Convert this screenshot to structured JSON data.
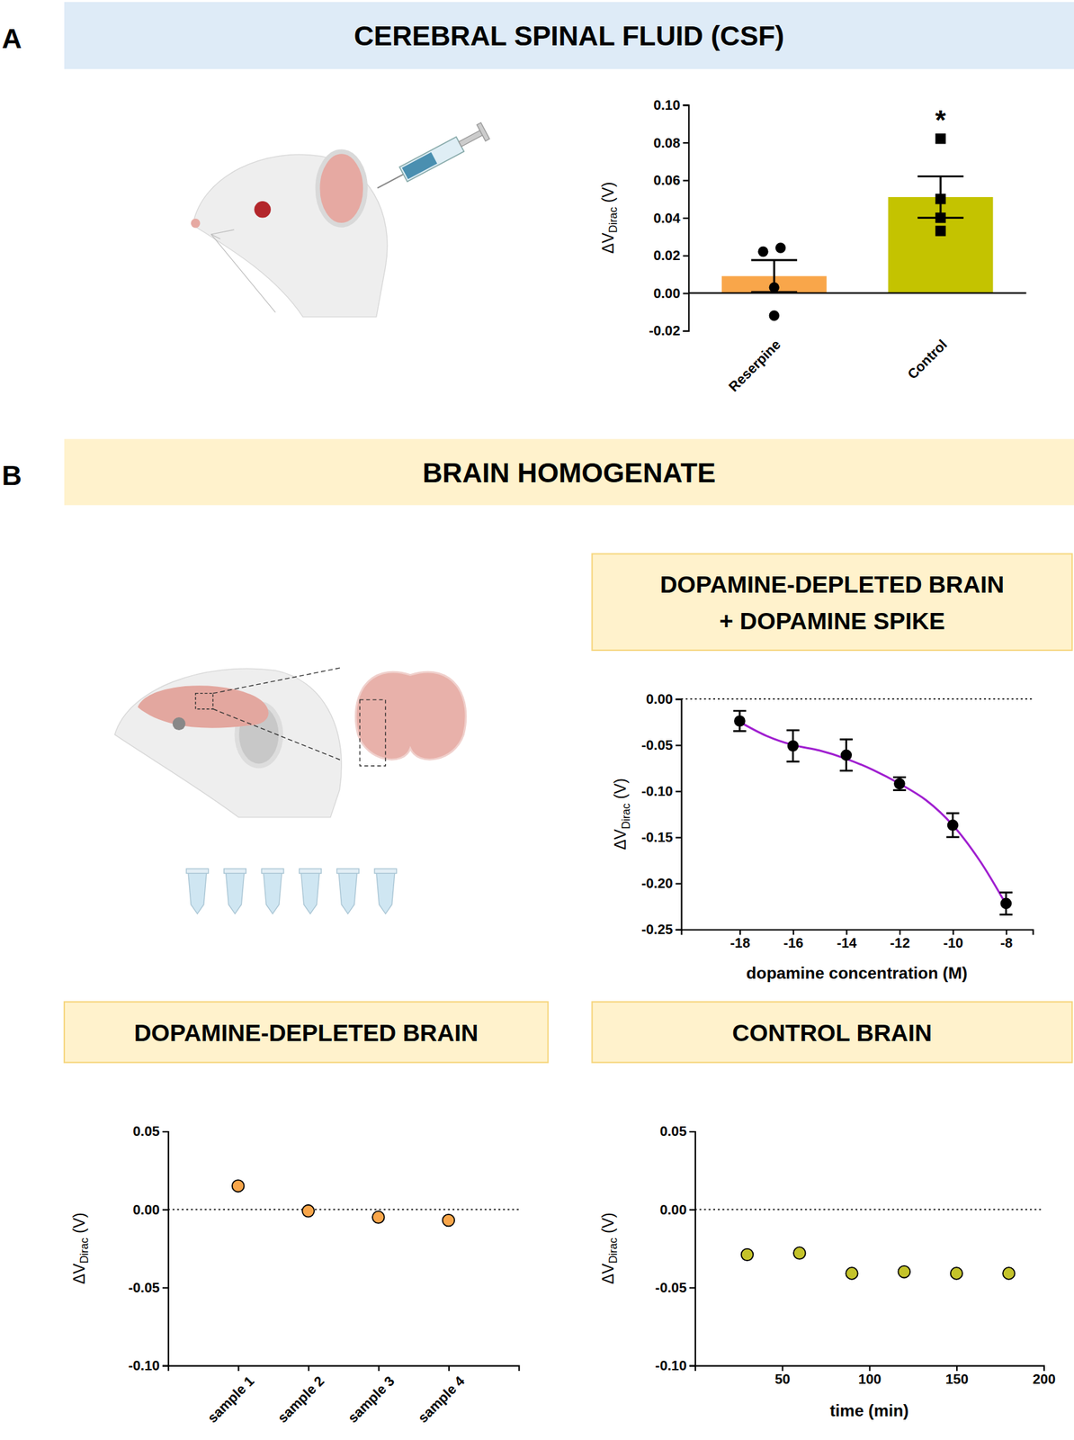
{
  "panels": [
    {
      "label": "A",
      "title": "CEREBRAL SPINAL FLUID (CSF)"
    },
    {
      "label": "B",
      "title": "BRAIN HOMOGENATE"
    }
  ],
  "chart_data": [
    {
      "type": "bar",
      "categories": [
        "Reserpine",
        "Control"
      ],
      "values": [
        0.009,
        0.051
      ],
      "errors": [
        0.0085,
        0.011
      ],
      "colors": [
        "#f9a64a",
        "#c4c300"
      ],
      "points": [
        {
          "marker": "circle",
          "values": [
            0.022,
            0.024,
            0.003,
            -0.012
          ]
        },
        {
          "marker": "square",
          "values": [
            0.082,
            0.05,
            0.04,
            0.033
          ]
        }
      ],
      "y_label": "ΔVDirac (V)",
      "ylim": [
        -0.02,
        0.1
      ],
      "yticks": [
        -0.02,
        {
          "value": 0,
          "label": "0.00"
        },
        0.02,
        0.04,
        0.06,
        0.08,
        {
          "value": 0.1,
          "label": "0.10"
        }
      ],
      "annotations": [
        {
          "text": "*",
          "category": "Control"
        }
      ]
    },
    {
      "type": "scatter",
      "title": [
        "DOPAMINE-DEPLETED BRAIN",
        "+ DOPAMINE SPIKE"
      ],
      "x": [
        -18,
        -16,
        -14,
        -12,
        -10,
        -8
      ],
      "values": [
        -0.024,
        -0.051,
        -0.061,
        -0.092,
        -0.137,
        -0.222
      ],
      "errors": [
        0.011,
        0.017,
        0.017,
        0.007,
        0.013,
        0.012
      ],
      "color": "#000000",
      "marker": "circle",
      "fit": {
        "type": "line",
        "x": [
          -18,
          -17,
          -16,
          -15,
          -14,
          -13,
          -12,
          -11,
          -10,
          -9,
          -8
        ],
        "values": [
          -0.025,
          -0.04,
          -0.05,
          -0.056,
          -0.065,
          -0.077,
          -0.092,
          -0.11,
          -0.137,
          -0.175,
          -0.223
        ],
        "color": "#a01fd0"
      },
      "hline": 0,
      "x_label": "dopamine concentration (M)",
      "y_label": "ΔVDirac (V)",
      "xlim": [
        -20.2,
        -7
      ],
      "xticks": [
        -18,
        -16,
        -14,
        -12,
        -10,
        -8
      ],
      "ylim": [
        -0.25,
        0
      ],
      "yticks": [
        -0.25,
        {
          "value": -0.2,
          "label": "-0.20"
        },
        -0.15,
        {
          "value": -0.1,
          "label": "-0.10"
        },
        -0.05,
        {
          "value": 0,
          "label": "0.00"
        }
      ]
    },
    {
      "type": "scatter",
      "title": "DOPAMINE-DEPLETED BRAIN",
      "categories": [
        "sample 1",
        "sample 2",
        "sample 3",
        "sample 4"
      ],
      "values": [
        0.015,
        -0.001,
        -0.005,
        -0.007
      ],
      "color": "#f9a64a",
      "marker": "circle",
      "hline": 0,
      "y_label": "ΔVDirac (V)",
      "ylim": [
        -0.1,
        0.05
      ],
      "yticks": [
        {
          "value": -0.1,
          "label": "-0.10"
        },
        -0.05,
        {
          "value": 0,
          "label": "0.00"
        },
        0.05
      ]
    },
    {
      "type": "scatter",
      "title": "CONTROL BRAIN",
      "x": [
        30,
        60,
        90,
        120,
        150,
        180
      ],
      "values": [
        -0.029,
        -0.028,
        -0.041,
        -0.04,
        -0.041,
        -0.041
      ],
      "color": "#c4c32a",
      "marker": "circle",
      "hline": 0,
      "x_label": "time (min)",
      "y_label": "ΔVDirac (V)",
      "xlim": [
        0,
        200
      ],
      "xticks": [
        50,
        100,
        150,
        200
      ],
      "ylim": [
        -0.1,
        0.05
      ],
      "yticks": [
        {
          "value": -0.1,
          "label": "-0.10"
        },
        -0.05,
        {
          "value": 0,
          "label": "0.00"
        },
        0.05
      ]
    }
  ]
}
